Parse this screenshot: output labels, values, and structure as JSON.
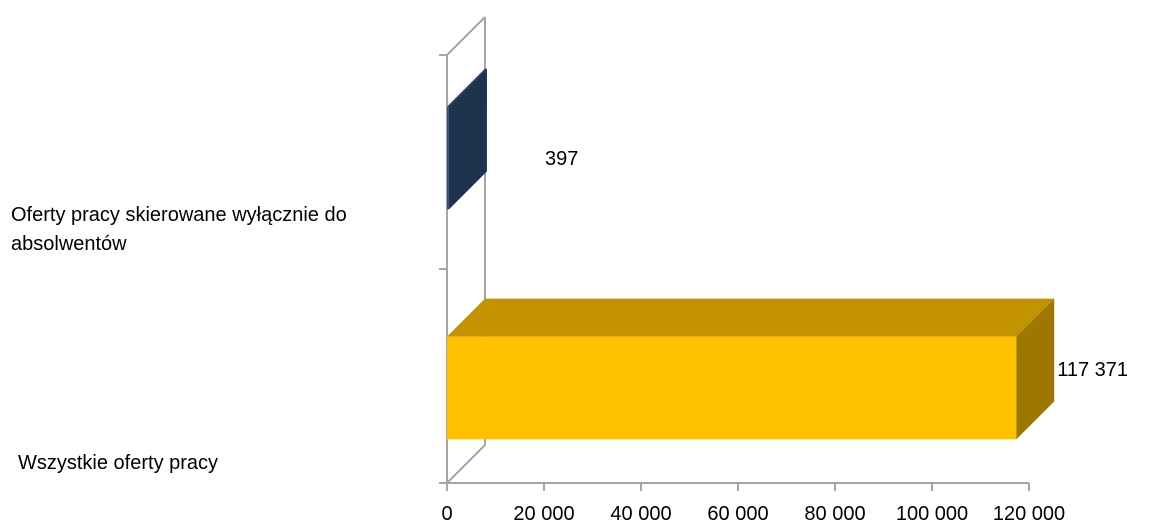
{
  "chart_data": {
    "type": "bar",
    "orientation": "horizontal",
    "style": "3d",
    "categories": [
      "Oferty pracy skierowane wyłącznie do absolwentów",
      "Wszystkie oferty pracy"
    ],
    "category_lines": [
      [
        "Oferty pracy skierowane wyłącznie do",
        "absolwentów"
      ],
      [
        "Wszystkie oferty pracy"
      ]
    ],
    "values": [
      397,
      117371
    ],
    "value_labels": [
      "397",
      "117 371"
    ],
    "colors": [
      "#2e507c",
      "#ffc000"
    ],
    "xlim": [
      0,
      120000
    ],
    "xticks": [
      0,
      20000,
      40000,
      60000,
      80000,
      100000,
      120000
    ],
    "xtick_labels": [
      "0",
      "20 000",
      "40 000",
      "60 000",
      "80 000",
      "100 000",
      "120 000"
    ],
    "title": "",
    "xlabel": "",
    "ylabel": "",
    "grid": false,
    "legend": false
  }
}
